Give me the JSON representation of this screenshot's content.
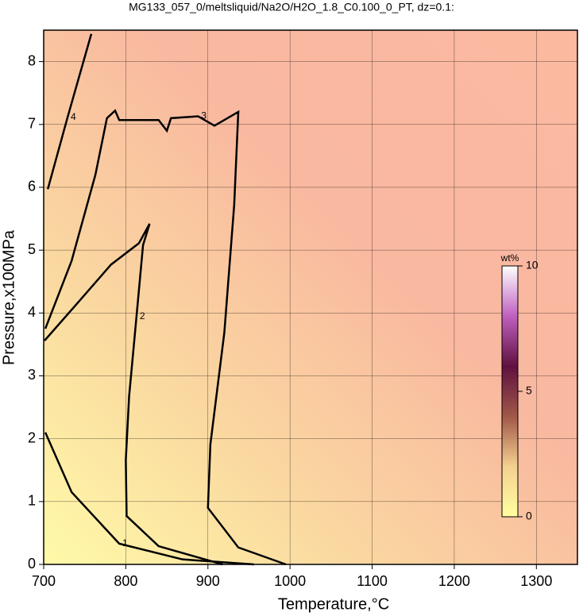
{
  "chart_data": {
    "type": "contour",
    "title": "MG133_057_0/meltsliquid/Na2O/H2O_1.8_C0.100_0_PT, dz=0.1:",
    "x_label": "Temperature,°C",
    "y_label": "Pressure,x100MPa",
    "xlim": [
      700,
      1350
    ],
    "ylim": [
      0,
      8.5
    ],
    "xticks": [
      700,
      800,
      900,
      1000,
      1100,
      1200,
      1300
    ],
    "yticks": [
      0,
      1,
      2,
      3,
      4,
      5,
      6,
      7,
      8
    ],
    "grid": true,
    "colorbar": {
      "label": "wt%",
      "lim": [
        0,
        10
      ],
      "ticks": [
        0,
        5,
        10
      ],
      "colormap": [
        "#ffffa0",
        "#f5d090",
        "#a05848",
        "#601040",
        "#c060c0",
        "#ffffff"
      ]
    },
    "contours": [
      {
        "level": 1,
        "x": [
          702,
          734,
          792,
          869,
          956
        ],
        "y": [
          2.1,
          1.15,
          0.33,
          0.08,
          0
        ]
      },
      {
        "level": 2,
        "x": [
          701,
          744,
          782,
          816,
          829,
          821,
          813,
          804,
          800,
          801,
          840,
          918
        ],
        "y": [
          3.56,
          4.2,
          4.77,
          5.11,
          5.42,
          5.08,
          3.94,
          2.67,
          1.66,
          0.77,
          0.29,
          0
        ]
      },
      {
        "level": 3,
        "x": [
          702,
          734,
          763,
          777,
          787,
          792,
          840,
          850,
          855,
          888,
          908,
          937,
          932,
          920,
          903,
          900,
          937,
          995
        ],
        "y": [
          3.75,
          4.83,
          6.2,
          7.1,
          7.22,
          7.07,
          7.07,
          6.9,
          7.1,
          7.13,
          6.98,
          7.2,
          5.72,
          3.69,
          1.91,
          0.9,
          0.27,
          0
        ]
      },
      {
        "level": 4,
        "x": [
          758,
          729,
          705
        ],
        "y": [
          8.44,
          7.11,
          5.97
        ]
      }
    ]
  }
}
